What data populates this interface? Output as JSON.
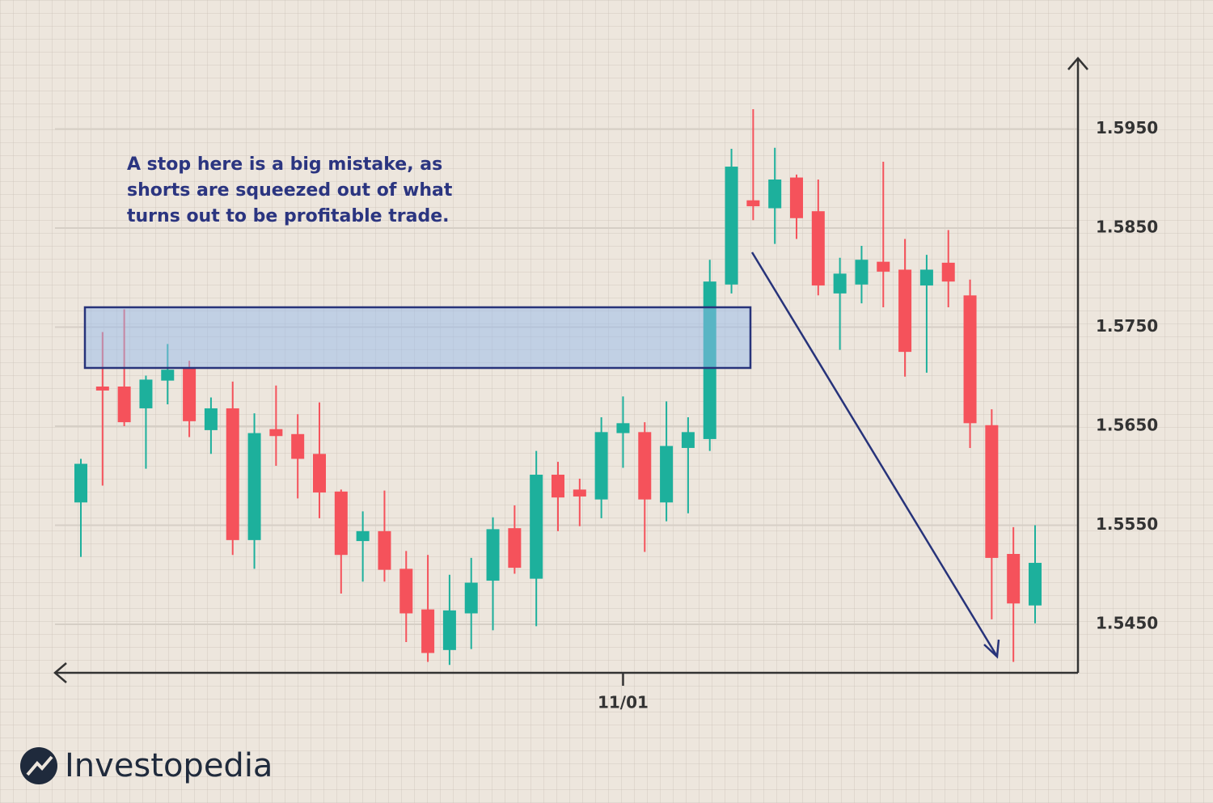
{
  "logo": "Investopedia",
  "chart_data": {
    "type": "candlestick",
    "annotation": [
      "A stop here is a big mistake, as",
      "shorts are squeezed out of what",
      "turns out to be profitable trade."
    ],
    "categories": [
      null,
      null,
      null,
      null,
      null,
      null,
      null,
      null,
      null,
      null,
      null,
      null,
      null,
      null,
      null,
      null,
      null,
      null,
      null,
      null,
      null,
      null,
      null,
      null,
      null,
      "11/01",
      null,
      null,
      null,
      null,
      null,
      null,
      null,
      null,
      null,
      null,
      null,
      null,
      null,
      null,
      null,
      null,
      null,
      null,
      null
    ],
    "open": [
      1.5573,
      1.569,
      1.569,
      1.5668,
      1.5696,
      1.5708,
      1.5646,
      1.5668,
      1.5535,
      1.5647,
      1.5642,
      1.5622,
      1.5584,
      1.5534,
      1.5544,
      1.5506,
      1.5465,
      1.5424,
      1.5461,
      1.5494,
      1.5547,
      1.5496,
      1.5601,
      1.5586,
      1.5576,
      1.5643,
      1.5644,
      1.5573,
      1.5628,
      1.5637,
      1.5793,
      1.5878,
      1.587,
      1.5901,
      1.5867,
      1.5784,
      1.5793,
      1.5816,
      1.5808,
      1.5792,
      1.5815,
      1.5782,
      1.5651,
      1.5521,
      1.5469
    ],
    "high": [
      1.5617,
      1.5745,
      1.5768,
      1.5701,
      1.5733,
      1.5716,
      1.5679,
      1.5695,
      1.5663,
      1.5691,
      1.5662,
      1.5674,
      1.5586,
      1.5564,
      1.5585,
      1.5524,
      1.552,
      1.55,
      1.5517,
      1.5558,
      1.557,
      1.5625,
      1.5614,
      1.5597,
      1.5659,
      1.568,
      1.5654,
      1.5675,
      1.5659,
      1.5818,
      1.593,
      1.597,
      1.5931,
      1.5904,
      1.5899,
      1.582,
      1.5832,
      1.5917,
      1.5839,
      1.5823,
      1.5848,
      1.5798,
      1.5667,
      1.5548,
      1.555
    ],
    "low": [
      1.5518,
      1.559,
      1.565,
      1.5607,
      1.5672,
      1.5639,
      1.5622,
      1.552,
      1.5506,
      1.561,
      1.5577,
      1.5557,
      1.5481,
      1.5493,
      1.5493,
      1.5432,
      1.5412,
      1.5409,
      1.5425,
      1.5444,
      1.5501,
      1.5448,
      1.5544,
      1.5549,
      1.5557,
      1.5608,
      1.5523,
      1.5554,
      1.5562,
      1.5625,
      1.5784,
      1.5858,
      1.5834,
      1.5839,
      1.5782,
      1.5727,
      1.5774,
      1.577,
      1.57,
      1.5704,
      1.577,
      1.5628,
      1.5455,
      1.5412,
      1.5451
    ],
    "close": [
      1.5612,
      1.5686,
      1.5654,
      1.5697,
      1.5707,
      1.5655,
      1.5668,
      1.5535,
      1.5643,
      1.564,
      1.5617,
      1.5583,
      1.552,
      1.5544,
      1.5505,
      1.5461,
      1.5421,
      1.5464,
      1.5492,
      1.5546,
      1.5507,
      1.5601,
      1.5578,
      1.5579,
      1.5644,
      1.5653,
      1.5576,
      1.563,
      1.5644,
      1.5796,
      1.5912,
      1.5872,
      1.5899,
      1.586,
      1.5792,
      1.5804,
      1.5818,
      1.5806,
      1.5725,
      1.5808,
      1.5796,
      1.5653,
      1.5517,
      1.5471,
      1.5512
    ],
    "up_color": "#1db09c",
    "down_color": "#f5525b",
    "ylim": [
      1.5401,
      1.6019
    ],
    "yticks": [
      {
        "value": 1.545,
        "label": "1.5450"
      },
      {
        "value": 1.555,
        "label": "1.5550"
      },
      {
        "value": 1.565,
        "label": "1.5650"
      },
      {
        "value": 1.575,
        "label": "1.5750"
      },
      {
        "value": 1.585,
        "label": "1.5850"
      },
      {
        "value": 1.595,
        "label": "1.5950"
      }
    ],
    "grid": true
  }
}
